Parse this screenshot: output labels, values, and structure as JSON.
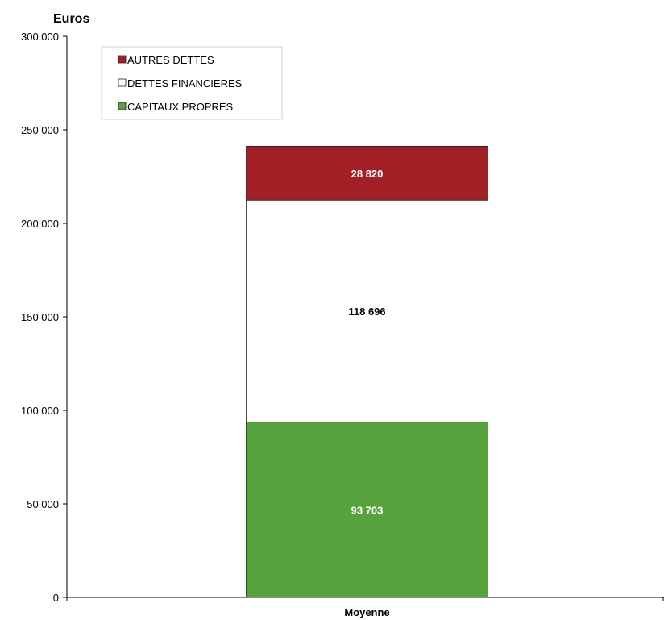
{
  "chart_data": {
    "type": "bar",
    "stacked": true,
    "ylabel": "Euros",
    "ylim": [
      0,
      300000
    ],
    "y_ticks": [
      0,
      50000,
      100000,
      150000,
      200000,
      250000,
      300000
    ],
    "y_tick_labels": [
      "0",
      "50 000",
      "100 000",
      "150 000",
      "200 000",
      "250 000",
      "300 000"
    ],
    "categories": [
      "Moyenne"
    ],
    "series": [
      {
        "name": "CAPITAUX PROPRES",
        "values": [
          93703
        ],
        "label": "93 703",
        "color": "#56a33e",
        "label_color": "#ffffff"
      },
      {
        "name": "DETTES FINANCIERES",
        "values": [
          118696
        ],
        "label": "118 696",
        "color": "#ffffff",
        "label_color": "#000000"
      },
      {
        "name": "AUTRES DETTES",
        "values": [
          28820
        ],
        "label": "28 820",
        "color": "#a31f26",
        "label_color": "#ffffff"
      }
    ],
    "legend": {
      "placement": "top-left",
      "order": [
        "AUTRES DETTES",
        "DETTES FINANCIERES",
        "CAPITAUX PROPRES"
      ]
    },
    "grid": false
  }
}
